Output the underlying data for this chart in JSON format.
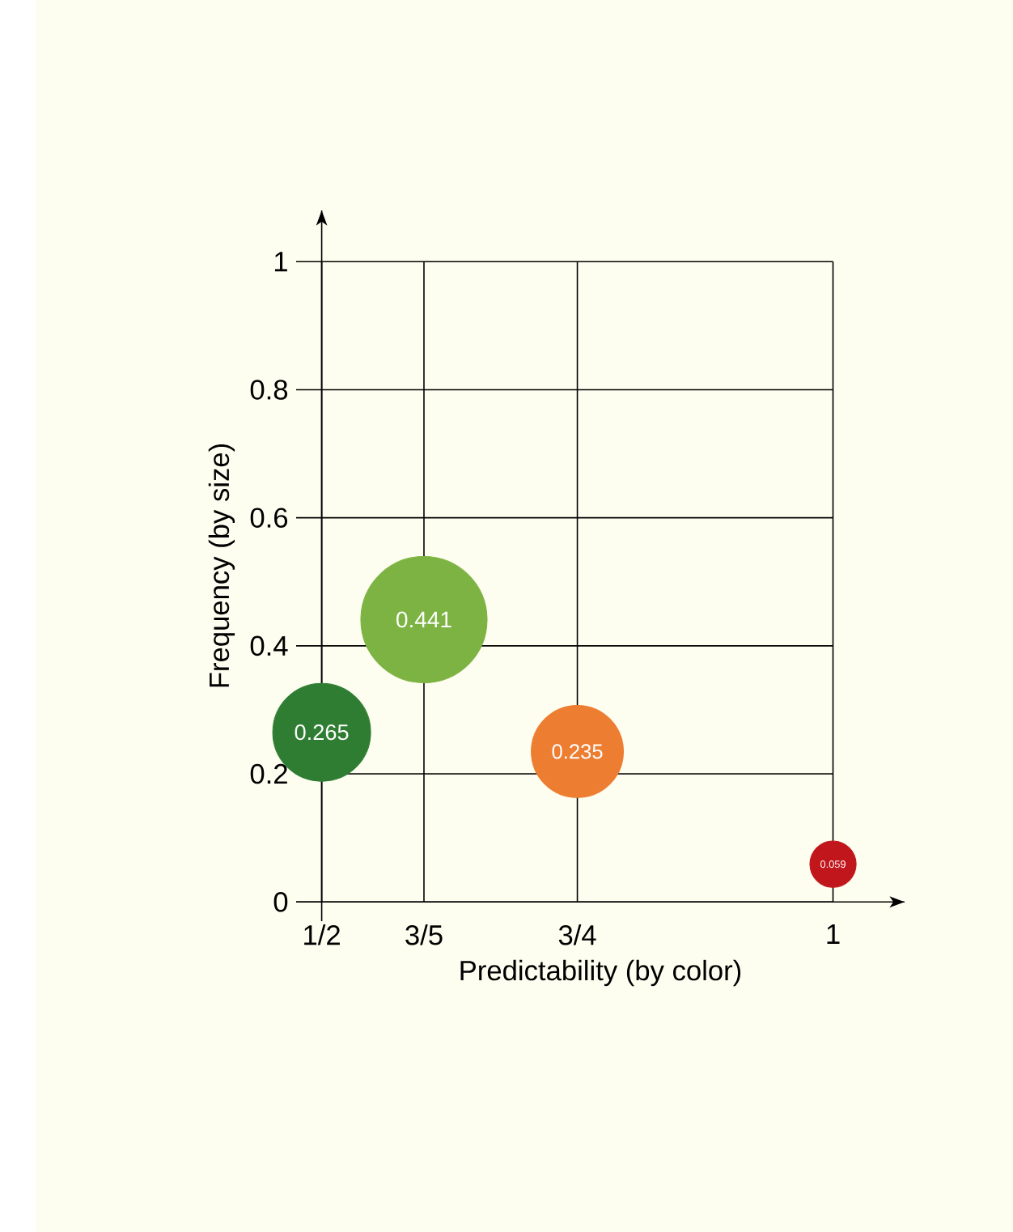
{
  "chart_data": {
    "type": "bubble",
    "xlabel": "Predictability (by color)",
    "ylabel": "Frequency (by size)",
    "x": [
      0.5,
      0.6,
      0.75,
      1
    ],
    "values": [
      0.265,
      0.441,
      0.235,
      0.059
    ],
    "sizes": [
      0.601,
      1,
      0.533,
      0.134
    ],
    "colors": [
      "#2e7d32",
      "#7cb342",
      "#ed7d31",
      "#c0161c"
    ],
    "value_labels": [
      "0.265",
      "0.441",
      "0.235",
      "0.059"
    ],
    "xlim": [
      0.475,
      1.07
    ],
    "ylim": [
      -0.03,
      1.08
    ],
    "xticks": [
      {
        "value": 0.5,
        "label": "1/2"
      },
      {
        "value": 0.6,
        "label": "3/5"
      },
      {
        "value": 0.75,
        "label": "3/4"
      },
      1
    ],
    "yticks": [
      0,
      0.2,
      0.4,
      0.6,
      0.8,
      1
    ],
    "grid": true
  }
}
